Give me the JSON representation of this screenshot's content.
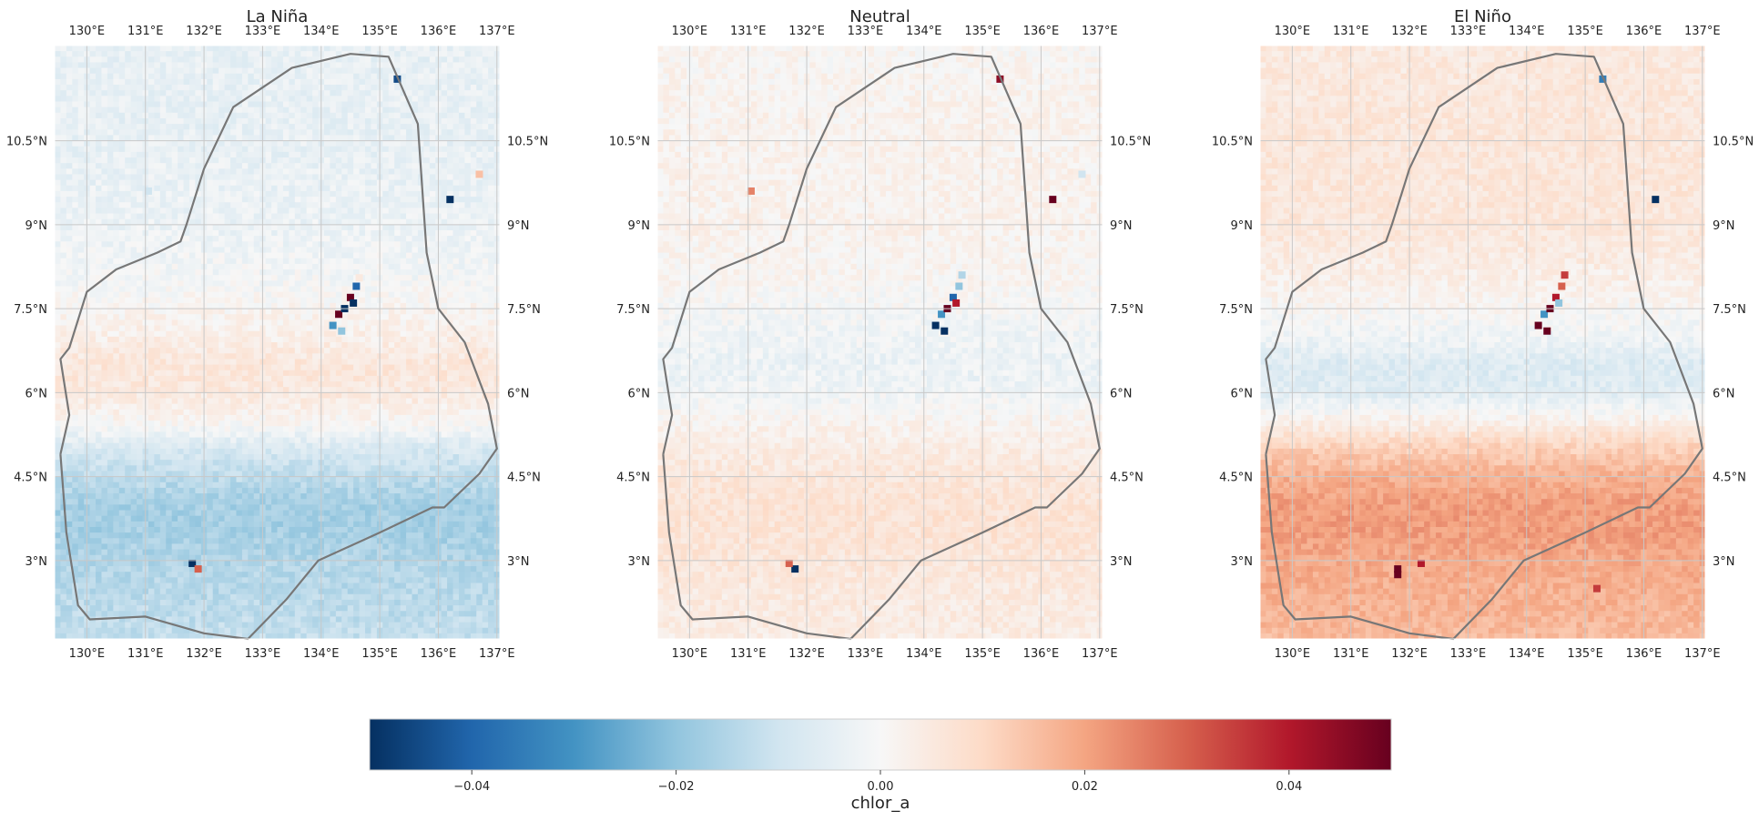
{
  "chart_data": {
    "type": "heatmap",
    "variable": "chlor_a",
    "colorbar": {
      "label": "chlor_a",
      "vmin": -0.05,
      "vmax": 0.05,
      "ticks": [
        -0.04,
        -0.02,
        0.0,
        0.02,
        0.04
      ],
      "tick_labels": [
        "−0.04",
        "−0.02",
        "0.00",
        "0.02",
        "0.04"
      ],
      "colormap": "RdBu_r",
      "colors": [
        "#053061",
        "#2166ac",
        "#4393c3",
        "#92c5de",
        "#d1e5f0",
        "#f7f7f7",
        "#fddbc7",
        "#f4a582",
        "#d6604d",
        "#b2182b",
        "#67001f"
      ]
    },
    "lon_range": [
      129.45,
      137.05
    ],
    "lat_range": [
      1.6,
      12.2
    ],
    "lon_ticks": [
      130,
      131,
      132,
      133,
      134,
      135,
      136,
      137
    ],
    "lon_tick_labels": [
      "130°E",
      "131°E",
      "132°E",
      "133°E",
      "134°E",
      "135°E",
      "136°E",
      "137°E"
    ],
    "lat_ticks": [
      3,
      4.5,
      6,
      7.5,
      9,
      10.5
    ],
    "lat_tick_labels": [
      "3°N",
      "4.5°N",
      "6°N",
      "7.5°N",
      "9°N",
      "10.5°N"
    ],
    "grid": true,
    "boundary_outline": [
      [
        129.55,
        4.9
      ],
      [
        129.65,
        3.5
      ],
      [
        129.85,
        2.2
      ],
      [
        130.05,
        1.95
      ],
      [
        131.0,
        2.0
      ],
      [
        132.0,
        1.7
      ],
      [
        132.75,
        1.6
      ],
      [
        133.4,
        2.3
      ],
      [
        133.95,
        3.0
      ],
      [
        135.0,
        3.5
      ],
      [
        135.9,
        3.95
      ],
      [
        136.1,
        3.95
      ],
      [
        136.7,
        4.55
      ],
      [
        137.0,
        5.0
      ],
      [
        136.85,
        5.8
      ],
      [
        136.45,
        6.9
      ],
      [
        136.0,
        7.5
      ],
      [
        135.8,
        8.5
      ],
      [
        135.65,
        10.8
      ],
      [
        135.15,
        12.0
      ],
      [
        134.5,
        12.05
      ],
      [
        133.5,
        11.8
      ],
      [
        132.5,
        11.1
      ],
      [
        132.0,
        10.0
      ],
      [
        131.7,
        9.0
      ],
      [
        131.6,
        8.7
      ],
      [
        131.2,
        8.5
      ],
      [
        130.5,
        8.2
      ],
      [
        130.0,
        7.8
      ],
      [
        129.7,
        6.8
      ],
      [
        129.55,
        6.6
      ],
      [
        129.7,
        5.6
      ],
      [
        129.55,
        4.9
      ]
    ],
    "panels": [
      {
        "title": "La Niña",
        "background": [
          {
            "lat": 12.2,
            "value": -0.004
          },
          {
            "lat": 10.5,
            "value": -0.004
          },
          {
            "lat": 9.0,
            "value": -0.003
          },
          {
            "lat": 8.0,
            "value": -0.001
          },
          {
            "lat": 7.0,
            "value": 0.003
          },
          {
            "lat": 6.5,
            "value": 0.006
          },
          {
            "lat": 6.0,
            "value": 0.005
          },
          {
            "lat": 5.4,
            "value": 0.0
          },
          {
            "lat": 5.0,
            "value": -0.008
          },
          {
            "lat": 4.5,
            "value": -0.013
          },
          {
            "lat": 4.0,
            "value": -0.017
          },
          {
            "lat": 3.5,
            "value": -0.017
          },
          {
            "lat": 3.0,
            "value": -0.015
          },
          {
            "lat": 2.5,
            "value": -0.014
          },
          {
            "lat": 1.6,
            "value": -0.012
          }
        ],
        "highlights": [
          {
            "lon": 134.2,
            "lat": 7.2,
            "value": -0.03
          },
          {
            "lon": 134.3,
            "lat": 7.4,
            "value": 0.05
          },
          {
            "lon": 134.4,
            "lat": 7.5,
            "value": -0.05
          },
          {
            "lon": 134.5,
            "lat": 7.7,
            "value": 0.05
          },
          {
            "lon": 134.6,
            "lat": 7.9,
            "value": -0.04
          },
          {
            "lon": 134.35,
            "lat": 7.1,
            "value": -0.02
          },
          {
            "lon": 134.55,
            "lat": 7.6,
            "value": -0.05
          },
          {
            "lon": 134.65,
            "lat": 8.05,
            "value": 0.005
          },
          {
            "lon": 131.8,
            "lat": 2.95,
            "value": -0.05
          },
          {
            "lon": 131.9,
            "lat": 2.85,
            "value": 0.03
          },
          {
            "lon": 135.3,
            "lat": 11.6,
            "value": -0.045
          },
          {
            "lon": 136.2,
            "lat": 9.45,
            "value": -0.05
          },
          {
            "lon": 136.7,
            "lat": 9.9,
            "value": 0.015
          },
          {
            "lon": 131.05,
            "lat": 9.6,
            "value": -0.01
          }
        ]
      },
      {
        "title": "Neutral",
        "background": [
          {
            "lat": 12.2,
            "value": 0.001
          },
          {
            "lat": 10.5,
            "value": 0.002
          },
          {
            "lat": 9.0,
            "value": 0.002
          },
          {
            "lat": 8.0,
            "value": 0.001
          },
          {
            "lat": 7.0,
            "value": -0.002
          },
          {
            "lat": 6.5,
            "value": -0.003
          },
          {
            "lat": 6.0,
            "value": -0.002
          },
          {
            "lat": 5.4,
            "value": 0.002
          },
          {
            "lat": 5.0,
            "value": 0.004
          },
          {
            "lat": 4.5,
            "value": 0.006
          },
          {
            "lat": 4.0,
            "value": 0.007
          },
          {
            "lat": 3.5,
            "value": 0.007
          },
          {
            "lat": 3.0,
            "value": 0.006
          },
          {
            "lat": 2.5,
            "value": 0.005
          },
          {
            "lat": 1.6,
            "value": 0.004
          }
        ],
        "highlights": [
          {
            "lon": 134.2,
            "lat": 7.2,
            "value": -0.05
          },
          {
            "lon": 134.3,
            "lat": 7.4,
            "value": -0.03
          },
          {
            "lon": 134.4,
            "lat": 7.5,
            "value": 0.05
          },
          {
            "lon": 134.5,
            "lat": 7.7,
            "value": -0.04
          },
          {
            "lon": 134.6,
            "lat": 7.9,
            "value": -0.02
          },
          {
            "lon": 134.35,
            "lat": 7.1,
            "value": -0.05
          },
          {
            "lon": 134.55,
            "lat": 7.6,
            "value": 0.04
          },
          {
            "lon": 134.65,
            "lat": 8.1,
            "value": -0.015
          },
          {
            "lon": 131.8,
            "lat": 2.85,
            "value": -0.05
          },
          {
            "lon": 131.7,
            "lat": 2.95,
            "value": 0.03
          },
          {
            "lon": 135.3,
            "lat": 11.6,
            "value": 0.045
          },
          {
            "lon": 136.2,
            "lat": 9.45,
            "value": 0.05
          },
          {
            "lon": 136.7,
            "lat": 9.9,
            "value": -0.01
          },
          {
            "lon": 131.05,
            "lat": 9.6,
            "value": 0.025
          }
        ]
      },
      {
        "title": "El Niño",
        "background": [
          {
            "lat": 12.2,
            "value": 0.005
          },
          {
            "lat": 10.5,
            "value": 0.006
          },
          {
            "lat": 9.0,
            "value": 0.006
          },
          {
            "lat": 8.0,
            "value": 0.003
          },
          {
            "lat": 7.0,
            "value": -0.002
          },
          {
            "lat": 6.5,
            "value": -0.007
          },
          {
            "lat": 6.0,
            "value": -0.006
          },
          {
            "lat": 5.4,
            "value": 0.004
          },
          {
            "lat": 5.0,
            "value": 0.012
          },
          {
            "lat": 4.5,
            "value": 0.018
          },
          {
            "lat": 4.0,
            "value": 0.021
          },
          {
            "lat": 3.5,
            "value": 0.021
          },
          {
            "lat": 3.0,
            "value": 0.019
          },
          {
            "lat": 2.5,
            "value": 0.018
          },
          {
            "lat": 1.6,
            "value": 0.016
          }
        ],
        "highlights": [
          {
            "lon": 134.2,
            "lat": 7.2,
            "value": 0.05
          },
          {
            "lon": 134.3,
            "lat": 7.4,
            "value": -0.03
          },
          {
            "lon": 134.4,
            "lat": 7.5,
            "value": 0.05
          },
          {
            "lon": 134.5,
            "lat": 7.7,
            "value": 0.04
          },
          {
            "lon": 134.6,
            "lat": 7.9,
            "value": 0.03
          },
          {
            "lon": 134.35,
            "lat": 7.1,
            "value": 0.05
          },
          {
            "lon": 134.55,
            "lat": 7.6,
            "value": -0.02
          },
          {
            "lon": 134.65,
            "lat": 8.1,
            "value": 0.035
          },
          {
            "lon": 131.8,
            "lat": 2.85,
            "value": 0.05
          },
          {
            "lon": 131.8,
            "lat": 2.75,
            "value": 0.05
          },
          {
            "lon": 135.3,
            "lat": 11.6,
            "value": -0.035
          },
          {
            "lon": 136.2,
            "lat": 9.45,
            "value": -0.05
          },
          {
            "lon": 135.2,
            "lat": 2.5,
            "value": 0.035
          },
          {
            "lon": 132.2,
            "lat": 2.95,
            "value": 0.04
          }
        ]
      }
    ]
  }
}
